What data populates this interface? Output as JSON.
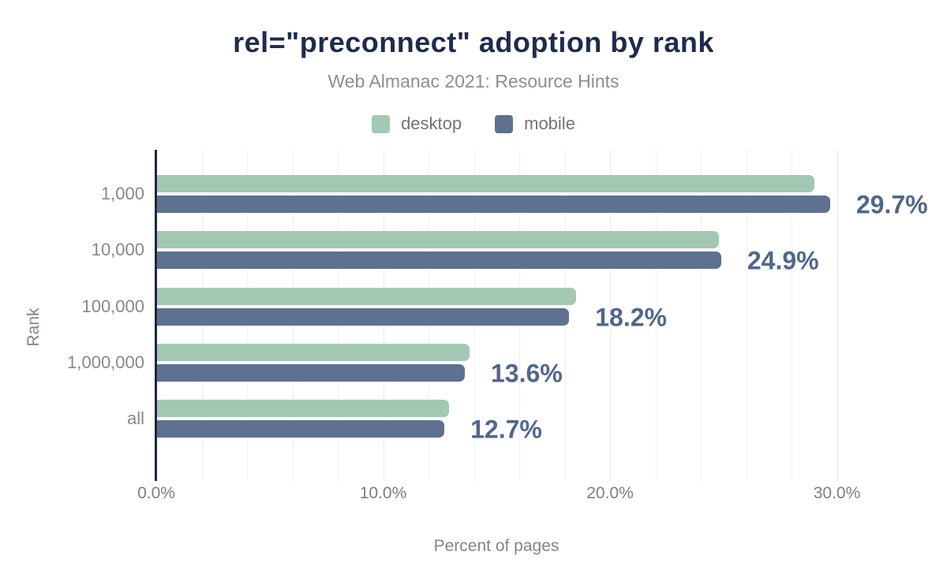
{
  "title": "rel=\"preconnect\" adoption by rank",
  "subtitle": "Web Almanac 2021: Resource Hints",
  "colors": {
    "title_text": "#1e2b50",
    "subtitle_text": "#8e8e92",
    "legend_text": "#73737b",
    "axis_tick_text": "#7d7d85",
    "axis_title_text": "#83838b",
    "category_text": "#87878f",
    "data_label_text": "#51668c",
    "axis_line": "#1b2844",
    "gridline_minor": "#f1f1f4",
    "gridline_major": "#e9e9ee",
    "desktop_bar": "#a3c8b4",
    "mobile_bar": "#5e7190",
    "background": "#ffffff"
  },
  "legend": [
    {
      "label": "desktop",
      "color": "#a3c8b4"
    },
    {
      "label": "mobile",
      "color": "#5e7190"
    }
  ],
  "chart_data": {
    "type": "bar",
    "orientation": "horizontal",
    "title": "rel=\"preconnect\" adoption by rank",
    "subtitle": "Web Almanac 2021: Resource Hints",
    "categories": [
      "1,000",
      "10,000",
      "100,000",
      "1,000,000",
      "all"
    ],
    "series": [
      {
        "name": "desktop",
        "color": "#a3c8b4",
        "values": [
          29.0,
          24.8,
          18.5,
          13.8,
          12.9
        ]
      },
      {
        "name": "mobile",
        "color": "#5e7190",
        "values": [
          29.7,
          24.9,
          18.2,
          13.6,
          12.7
        ]
      }
    ],
    "data_labels": [
      "29.7%",
      "24.9%",
      "18.2%",
      "13.6%",
      "12.7%"
    ],
    "data_labels_series": "mobile",
    "xlabel": "Percent of pages",
    "ylabel": "Rank",
    "x_ticks": [
      "0.0%",
      "10.0%",
      "20.0%",
      "30.0%"
    ],
    "x_tick_values": [
      0,
      10,
      20,
      30
    ],
    "xlim": [
      0,
      32.9
    ],
    "gridline_step_percent": 2,
    "grid": "vertical-minor",
    "legend_position": "top-center"
  }
}
